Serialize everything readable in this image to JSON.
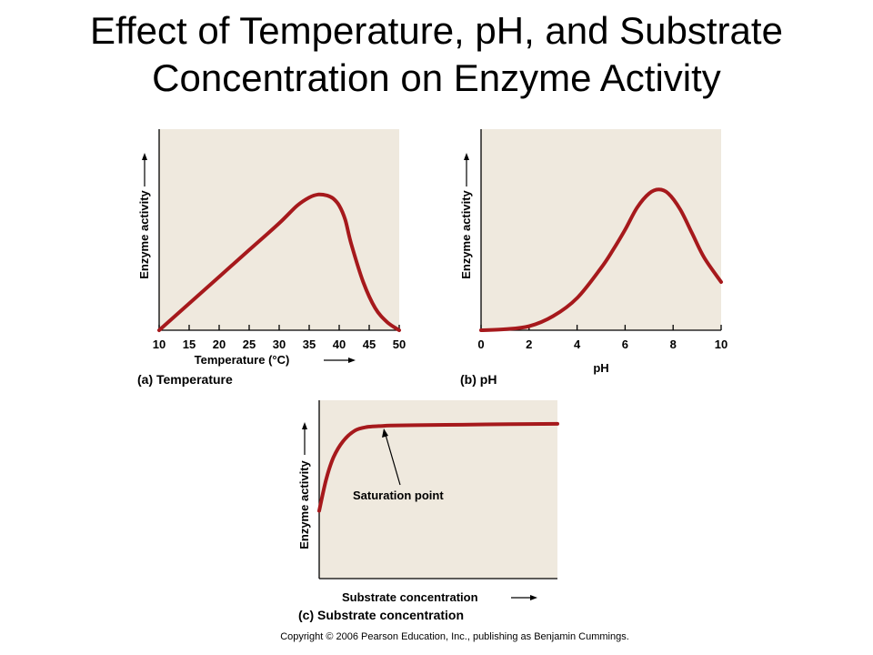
{
  "title": {
    "line1": "Effect of Temperature, pH, and Substrate",
    "line2": "Concentration on Enzyme Activity"
  },
  "colors": {
    "curve": "#a6191c",
    "panel_bg": "#efe9de",
    "axis": "#000000"
  },
  "chart_data": [
    {
      "type": "line",
      "caption": "(a) Temperature",
      "xlabel": "Temperature (°C)",
      "ylabel": "Enzyme activity",
      "xlim": [
        10,
        50
      ],
      "ylim": [
        0,
        1
      ],
      "x_ticks": [
        10,
        15,
        20,
        25,
        30,
        35,
        40,
        45,
        50
      ],
      "grid": false,
      "series": [
        {
          "x": [
            10,
            15,
            20,
            25,
            30,
            33,
            35,
            36.5,
            38,
            39,
            40,
            41,
            42,
            44,
            46,
            48,
            50
          ],
          "y": [
            0,
            0.133,
            0.266,
            0.399,
            0.532,
            0.62,
            0.66,
            0.675,
            0.67,
            0.655,
            0.62,
            0.55,
            0.43,
            0.24,
            0.11,
            0.04,
            0
          ]
        }
      ]
    },
    {
      "type": "line",
      "caption": "(b) pH",
      "xlabel": "pH",
      "ylabel": "Enzyme activity",
      "xlim": [
        0,
        10
      ],
      "ylim": [
        0,
        1
      ],
      "x_ticks": [
        0,
        2,
        4,
        6,
        8,
        10
      ],
      "grid": false,
      "series": [
        {
          "x": [
            0,
            1,
            2,
            3,
            4,
            5,
            5.5,
            6,
            6.5,
            7,
            7.4,
            7.8,
            8.3,
            8.8,
            9.3,
            10
          ],
          "y": [
            0,
            0.005,
            0.02,
            0.07,
            0.16,
            0.31,
            0.4,
            0.5,
            0.61,
            0.68,
            0.7,
            0.68,
            0.6,
            0.48,
            0.36,
            0.24
          ]
        }
      ]
    },
    {
      "type": "line",
      "caption": "(c) Substrate concentration",
      "xlabel": "Substrate concentration",
      "ylabel": "Enzyme activity",
      "xlim": [
        0,
        10
      ],
      "ylim": [
        0,
        1
      ],
      "grid": false,
      "annotation": "Saturation point",
      "series": [
        {
          "x": [
            0,
            0.3,
            0.6,
            1,
            1.5,
            2,
            2.5,
            3,
            4,
            6,
            8,
            10
          ],
          "y": [
            0.38,
            0.56,
            0.68,
            0.77,
            0.83,
            0.85,
            0.855,
            0.858,
            0.86,
            0.863,
            0.866,
            0.868
          ]
        }
      ]
    }
  ],
  "copyright": "Copyright © 2006 Pearson Education, Inc., publishing as Benjamin Cummings."
}
